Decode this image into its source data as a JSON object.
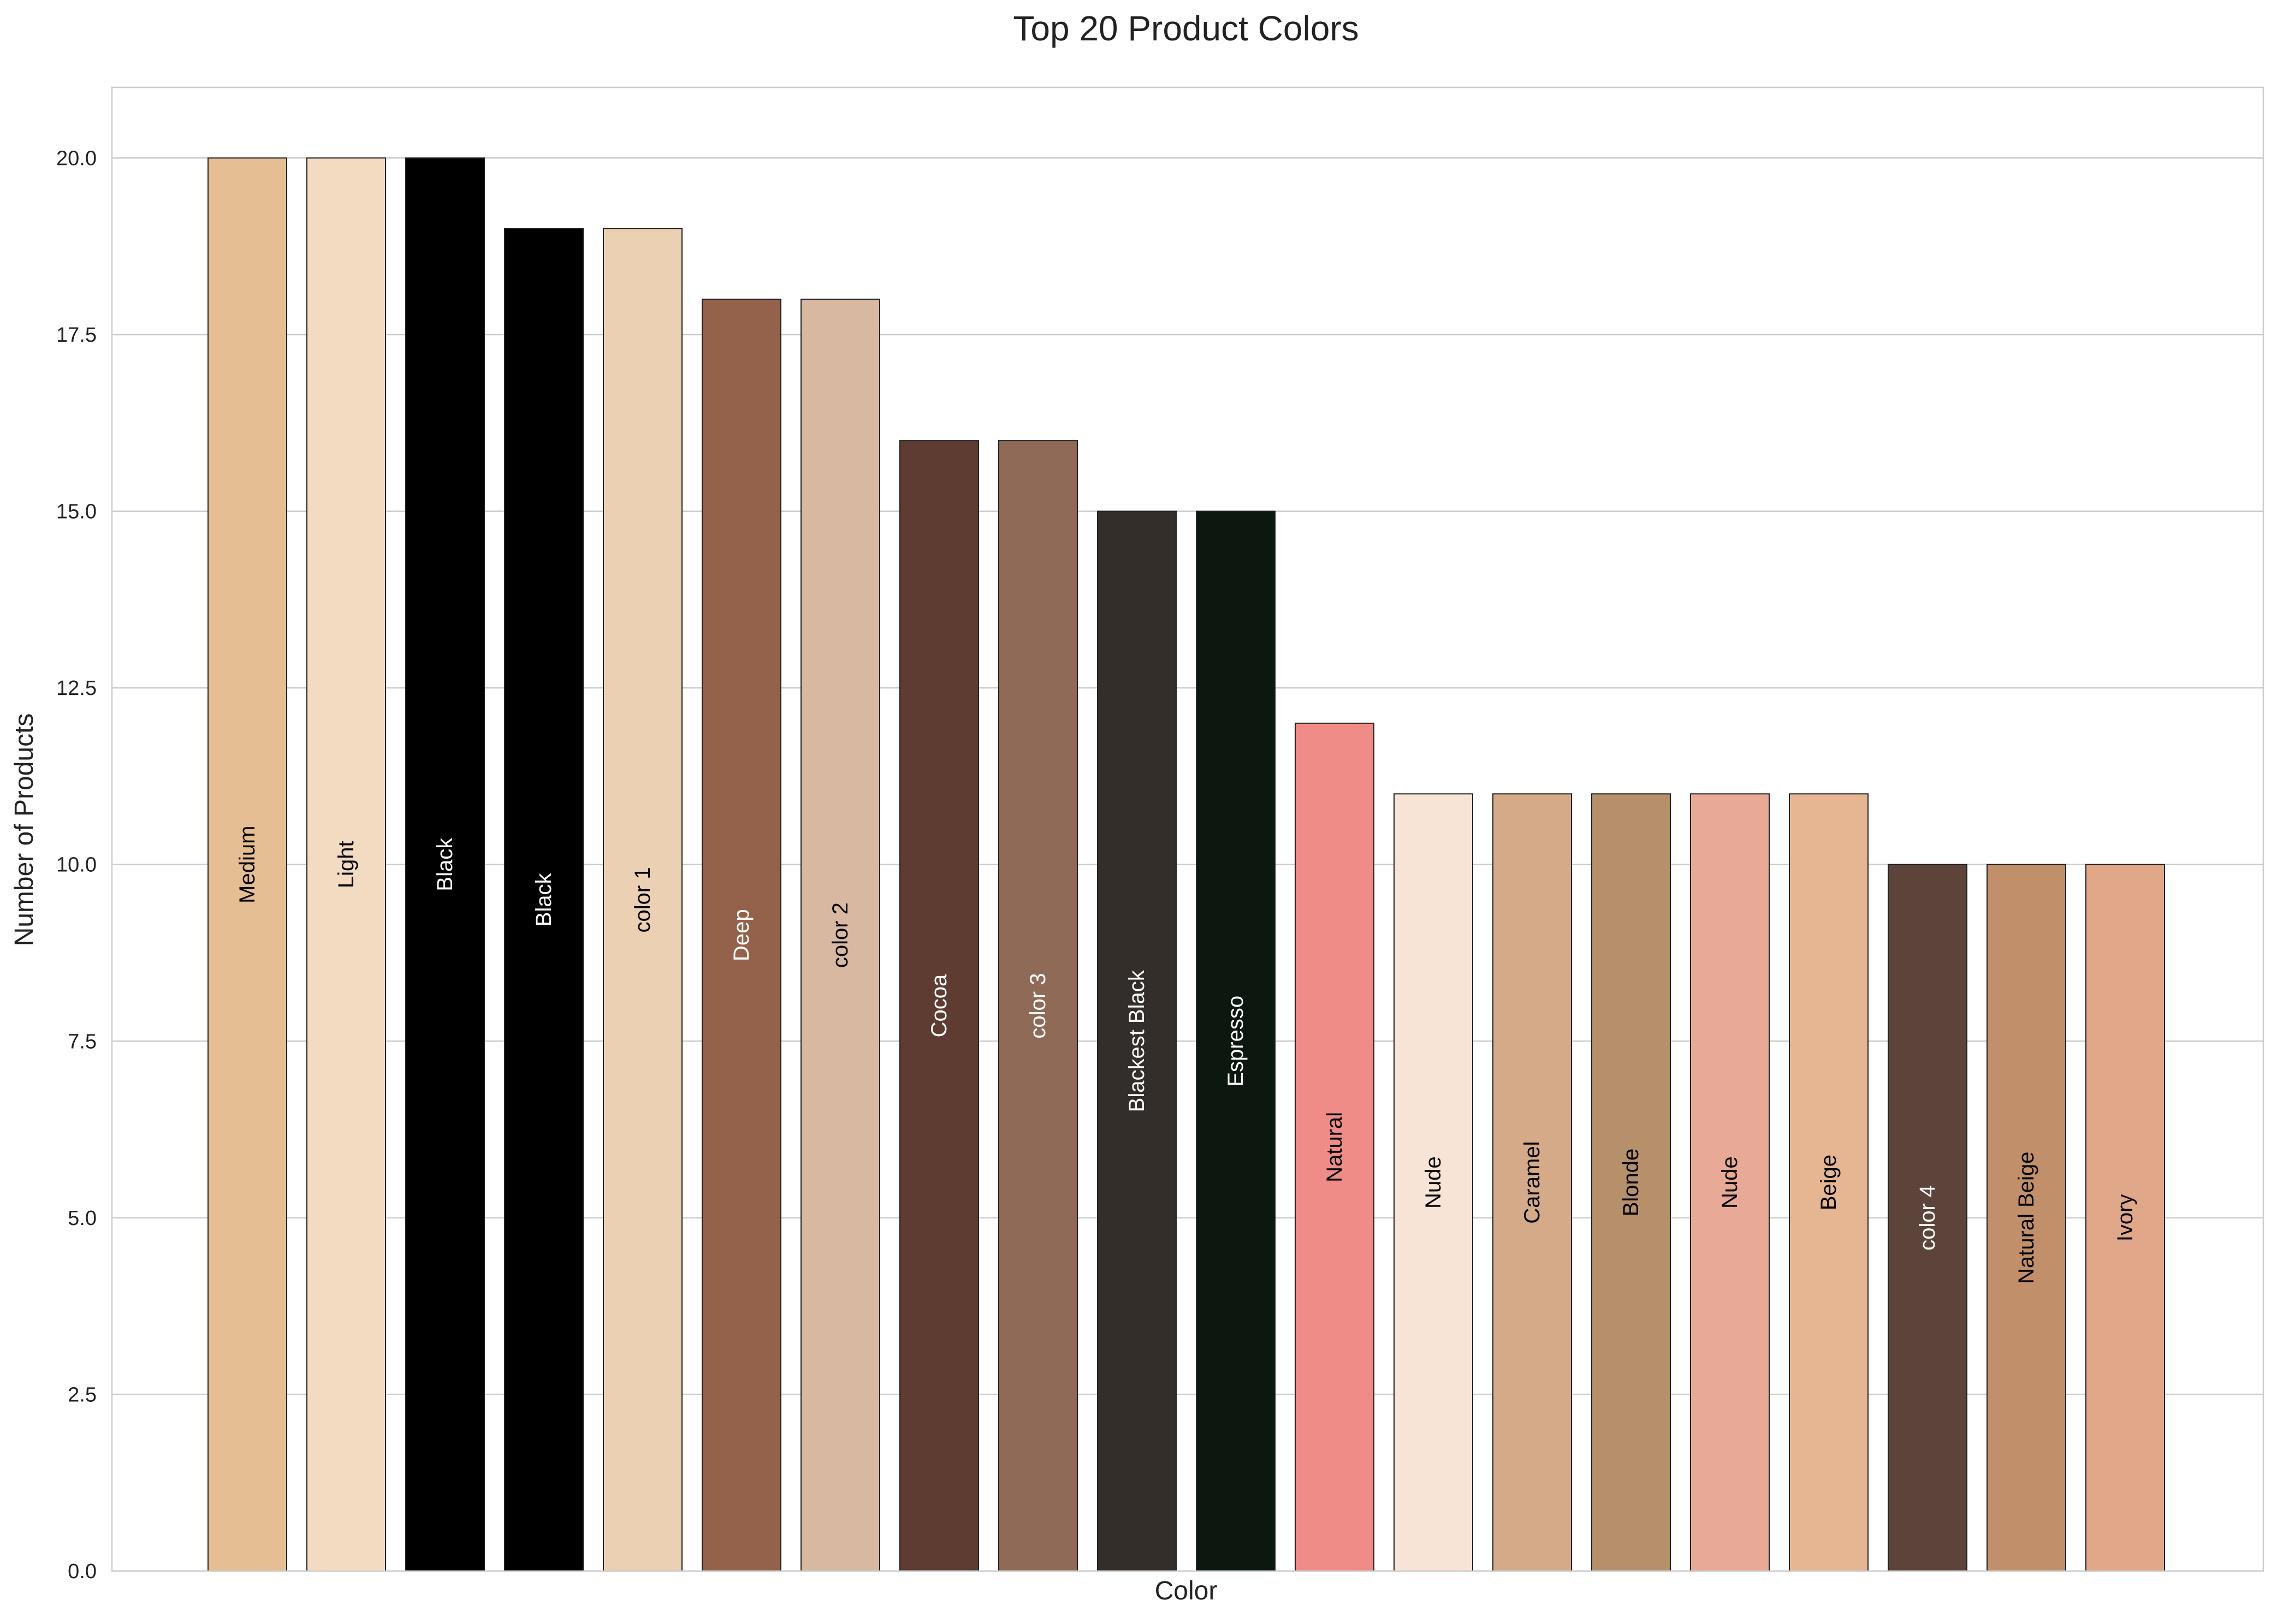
{
  "chart_data": {
    "type": "bar",
    "title": "Top 20 Product Colors",
    "xlabel": "Color",
    "ylabel": "Number of Products",
    "ylim": [
      0,
      21
    ],
    "yticks": [
      "0.0",
      "2.5",
      "5.0",
      "7.5",
      "10.0",
      "12.5",
      "15.0",
      "17.5",
      "20.0"
    ],
    "grid": "horizontal",
    "categories": [
      "Medium",
      "Light",
      "Black",
      "Black",
      "color 1",
      "Deep",
      "color 2",
      "Cocoa",
      "color 3",
      "Blackest Black",
      "Espresso",
      "Natural",
      "Nude",
      "Caramel",
      "Blonde",
      "Nude",
      "Beige",
      "color 4",
      "Natural Beige",
      "Ivory"
    ],
    "values": [
      20,
      20,
      20,
      19,
      19,
      18,
      18,
      16,
      16,
      15,
      15,
      12,
      11,
      11,
      11,
      11,
      11,
      10,
      10,
      10
    ],
    "bar_colors": [
      "#e6be93",
      "#f3dbc2",
      "#000000",
      "#000000",
      "#ebd0b4",
      "#94624a",
      "#d8b8a0",
      "#5e3c31",
      "#8e6a57",
      "#342e2a",
      "#0c1710",
      "#f08c88",
      "#f8e4d6",
      "#d4aa89",
      "#b68f6b",
      "#e8aa96",
      "#e6b693",
      "#5c443a",
      "#c18f69",
      "#e0a888"
    ],
    "label_colors": [
      "#000000",
      "#000000",
      "#ffffff",
      "#ffffff",
      "#000000",
      "#ffffff",
      "#000000",
      "#ffffff",
      "#ffffff",
      "#ffffff",
      "#ffffff",
      "#000000",
      "#000000",
      "#000000",
      "#000000",
      "#000000",
      "#000000",
      "#ffffff",
      "#000000",
      "#000000"
    ]
  }
}
